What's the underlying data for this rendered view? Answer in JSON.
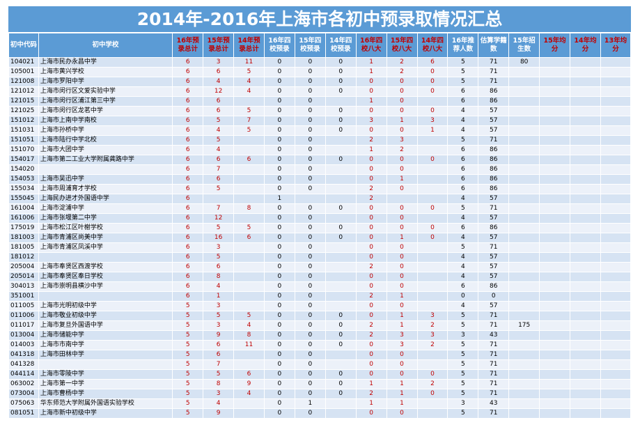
{
  "title": "2014年-2016年上海市各初中预录取情况汇总",
  "headers": [
    "初中代码",
    "初中学校",
    "16年预录总计",
    "15年预录总计",
    "14年预录总计",
    "16年四校预录",
    "15年四校预录",
    "14年四校预录",
    "16年四校八大",
    "15年四校八大",
    "14年四校八大",
    "16年推荐人数",
    "估算学籍数",
    "15年招生数",
    "15年均分",
    "14年均分",
    "13年均分"
  ],
  "rows": [
    [
      "104021",
      "上海市民办永昌中学",
      "6",
      "3",
      "11",
      "0",
      "0",
      "0",
      "1",
      "2",
      "6",
      "5",
      "71",
      "80",
      "",
      "",
      ""
    ],
    [
      "105001",
      "上海市黄兴学校",
      "6",
      "6",
      "5",
      "0",
      "0",
      "0",
      "1",
      "2",
      "0",
      "5",
      "71",
      "",
      "",
      "",
      ""
    ],
    [
      "121008",
      "上海市罗阳中学",
      "6",
      "4",
      "4",
      "0",
      "0",
      "0",
      "0",
      "0",
      "0",
      "5",
      "71",
      "",
      "",
      "",
      ""
    ],
    [
      "121012",
      "上海市闵行区文爱实验中学",
      "6",
      "12",
      "4",
      "0",
      "0",
      "0",
      "0",
      "0",
      "0",
      "6",
      "86",
      "",
      "",
      "",
      ""
    ],
    [
      "121015",
      "上海市闵行区浦江第三中学",
      "6",
      "6",
      "",
      "0",
      "0",
      "",
      "1",
      "0",
      "",
      "6",
      "86",
      "",
      "",
      "",
      ""
    ],
    [
      "121025",
      "上海市闵行区龙茗中学",
      "6",
      "6",
      "5",
      "0",
      "0",
      "0",
      "0",
      "0",
      "0",
      "4",
      "57",
      "",
      "",
      "",
      ""
    ],
    [
      "151012",
      "上海市上南中学南校",
      "6",
      "5",
      "7",
      "0",
      "0",
      "0",
      "3",
      "1",
      "3",
      "4",
      "57",
      "",
      "",
      "",
      ""
    ],
    [
      "151031",
      "上海市孙桥中学",
      "6",
      "4",
      "5",
      "0",
      "0",
      "0",
      "0",
      "0",
      "1",
      "4",
      "57",
      "",
      "",
      "",
      ""
    ],
    [
      "151051",
      "上海市陆行中学北校",
      "6",
      "5",
      "",
      "0",
      "0",
      "",
      "2",
      "3",
      "",
      "5",
      "71",
      "",
      "",
      "",
      ""
    ],
    [
      "151070",
      "上海市大团中学",
      "6",
      "4",
      "",
      "0",
      "0",
      "",
      "1",
      "2",
      "",
      "6",
      "86",
      "",
      "",
      "",
      ""
    ],
    [
      "154017",
      "上海市第二工业大学附属龚路中学",
      "6",
      "6",
      "6",
      "0",
      "0",
      "0",
      "0",
      "0",
      "0",
      "6",
      "86",
      "",
      "",
      "",
      ""
    ],
    [
      "154020",
      "",
      "6",
      "7",
      "",
      "0",
      "0",
      "",
      "0",
      "0",
      "",
      "6",
      "86",
      "",
      "",
      "",
      ""
    ],
    [
      "154053",
      "上海市吴迅中学",
      "6",
      "6",
      "",
      "0",
      "0",
      "",
      "0",
      "1",
      "",
      "6",
      "86",
      "",
      "",
      "",
      ""
    ],
    [
      "155034",
      "上海市周浦育才学校",
      "6",
      "5",
      "",
      "0",
      "0",
      "",
      "2",
      "0",
      "",
      "6",
      "86",
      "",
      "",
      "",
      ""
    ],
    [
      "155045",
      "上海民办进才外国语中学",
      "6",
      "",
      "",
      "1",
      "",
      "",
      "2",
      "",
      "",
      "4",
      "57",
      "",
      "",
      "",
      ""
    ],
    [
      "161004",
      "上海市淀浦中学",
      "6",
      "7",
      "8",
      "0",
      "0",
      "0",
      "0",
      "0",
      "0",
      "5",
      "71",
      "",
      "",
      "",
      ""
    ],
    [
      "161006",
      "上海市张堰第二中学",
      "6",
      "12",
      "",
      "0",
      "0",
      "",
      "0",
      "0",
      "",
      "4",
      "57",
      "",
      "",
      "",
      ""
    ],
    [
      "175019",
      "上海市松江区叶榭学校",
      "6",
      "5",
      "5",
      "0",
      "0",
      "0",
      "0",
      "0",
      "0",
      "6",
      "86",
      "",
      "",
      "",
      ""
    ],
    [
      "181003",
      "上海市青浦区尚美中学",
      "6",
      "16",
      "6",
      "0",
      "0",
      "0",
      "0",
      "1",
      "0",
      "4",
      "57",
      "",
      "",
      "",
      ""
    ],
    [
      "181005",
      "上海市青浦区凤溪中学",
      "6",
      "3",
      "",
      "0",
      "0",
      "",
      "0",
      "0",
      "",
      "5",
      "71",
      "",
      "",
      "",
      ""
    ],
    [
      "181012",
      "",
      "6",
      "5",
      "",
      "0",
      "0",
      "",
      "0",
      "0",
      "",
      "4",
      "57",
      "",
      "",
      "",
      ""
    ],
    [
      "205004",
      "上海市奉贤区西渡学校",
      "6",
      "6",
      "",
      "0",
      "0",
      "",
      "2",
      "0",
      "",
      "4",
      "57",
      "",
      "",
      "",
      ""
    ],
    [
      "205014",
      "上海市奉贤区奉日学校",
      "6",
      "8",
      "",
      "0",
      "0",
      "",
      "0",
      "0",
      "",
      "4",
      "57",
      "",
      "",
      "",
      ""
    ],
    [
      "304013",
      "上海市崇明县横沙中学",
      "6",
      "4",
      "",
      "0",
      "0",
      "",
      "0",
      "0",
      "",
      "6",
      "86",
      "",
      "",
      "",
      ""
    ],
    [
      "351001",
      "",
      "6",
      "1",
      "",
      "0",
      "0",
      "",
      "2",
      "1",
      "",
      "0",
      "0",
      "",
      "",
      "",
      ""
    ],
    [
      "011005",
      "上海市光明初级中学",
      "5",
      "3",
      "",
      "0",
      "0",
      "",
      "0",
      "0",
      "",
      "4",
      "57",
      "",
      "",
      "",
      ""
    ],
    [
      "011006",
      "上海市敬业初级中学",
      "5",
      "5",
      "5",
      "0",
      "0",
      "0",
      "0",
      "1",
      "3",
      "5",
      "71",
      "",
      "",
      "",
      ""
    ],
    [
      "011017",
      "上海市复旦外国语中学",
      "5",
      "3",
      "4",
      "0",
      "0",
      "0",
      "2",
      "1",
      "2",
      "5",
      "71",
      "175",
      "",
      "",
      ""
    ],
    [
      "013004",
      "上海市储能中学",
      "5",
      "9",
      "8",
      "0",
      "0",
      "0",
      "2",
      "3",
      "3",
      "3",
      "43",
      "",
      "",
      "",
      ""
    ],
    [
      "014003",
      "上海市市南中学",
      "5",
      "6",
      "11",
      "0",
      "0",
      "0",
      "0",
      "3",
      "2",
      "5",
      "71",
      "",
      "",
      "",
      ""
    ],
    [
      "041318",
      "上海市田林中学",
      "5",
      "6",
      "",
      "0",
      "0",
      "",
      "0",
      "0",
      "",
      "5",
      "71",
      "",
      "",
      "",
      ""
    ],
    [
      "041328",
      "",
      "5",
      "7",
      "",
      "0",
      "0",
      "",
      "0",
      "0",
      "",
      "5",
      "71",
      "",
      "",
      "",
      ""
    ],
    [
      "044114",
      "上海市零陵中学",
      "5",
      "5",
      "6",
      "0",
      "0",
      "0",
      "0",
      "0",
      "0",
      "5",
      "71",
      "",
      "",
      "",
      ""
    ],
    [
      "063002",
      "上海市第一中学",
      "5",
      "8",
      "9",
      "0",
      "0",
      "0",
      "1",
      "1",
      "2",
      "5",
      "71",
      "",
      "",
      "",
      ""
    ],
    [
      "073004",
      "上海市曹杨中学",
      "5",
      "3",
      "4",
      "0",
      "0",
      "0",
      "2",
      "1",
      "0",
      "5",
      "71",
      "",
      "",
      "",
      ""
    ],
    [
      "075063",
      "华东师范大学附属外国语实验学校",
      "5",
      "4",
      "",
      "0",
      "1",
      "",
      "1",
      "1",
      "",
      "3",
      "43",
      "",
      "",
      "",
      ""
    ],
    [
      "081051",
      "上海市新中初级中学",
      "5",
      "9",
      "",
      "0",
      "0",
      "",
      "0",
      "0",
      "",
      "5",
      "71",
      "",
      "",
      "",
      ""
    ]
  ]
}
